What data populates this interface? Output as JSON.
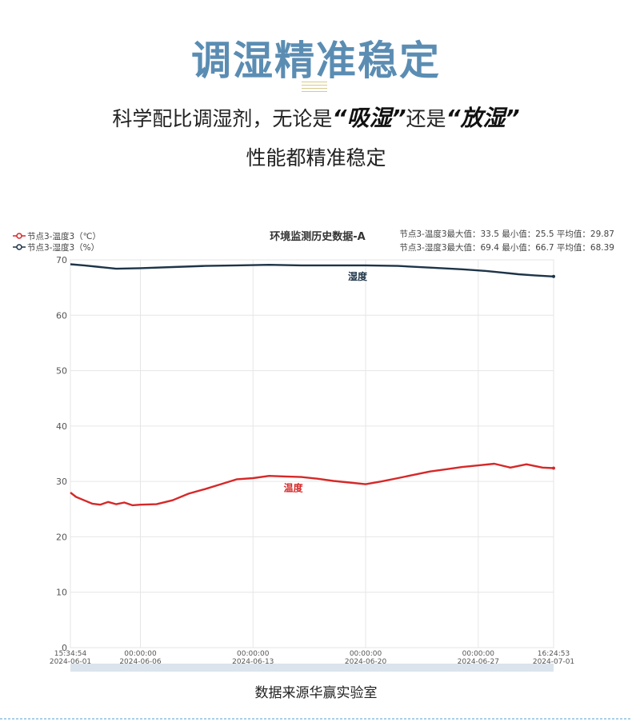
{
  "page": {
    "headline": "调湿精准稳定",
    "subtitle_pre": "科学配比调湿剂，无论是",
    "subtitle_q1": "“吸湿”",
    "subtitle_mid": "还是",
    "subtitle_q2": "“放湿”",
    "subtitle_line2": "性能都精准稳定",
    "source": "数据来源华赢实验室"
  },
  "chart_data": {
    "type": "line",
    "title": "环境监测历史数据-A",
    "ylim": [
      0,
      70
    ],
    "yticks": [
      0,
      10,
      20,
      30,
      40,
      50,
      60,
      70
    ],
    "xlim": [
      "2024-06-01 15:34:54",
      "2024-07-01 16:24:53"
    ],
    "xticks": [
      {
        "time": "15:34:54",
        "date": "2024-06-01"
      },
      {
        "time": "00:00:00",
        "date": "2024-06-06"
      },
      {
        "time": "00:00:00",
        "date": "2024-06-13"
      },
      {
        "time": "00:00:00",
        "date": "2024-06-20"
      },
      {
        "time": "00:00:00",
        "date": "2024-06-27"
      },
      {
        "time": "16:24:53",
        "date": "2024-07-01"
      }
    ],
    "grid": true,
    "legend_position": "top-left",
    "series": [
      {
        "name": "节点3-温度3（℃）",
        "label": "温度",
        "color": "#d62828",
        "stats": "节点3-温度3最大值：33.5 最小值：25.5 平均值：29.87",
        "x": [
          "2024-06-01 15:34",
          "2024-06-02 00:00",
          "2024-06-02 12:00",
          "2024-06-03 00:00",
          "2024-06-03 12:00",
          "2024-06-04 00:00",
          "2024-06-04 12:00",
          "2024-06-05 00:00",
          "2024-06-05 12:00",
          "2024-06-06 00:00",
          "2024-06-07 00:00",
          "2024-06-08 00:00",
          "2024-06-09 00:00",
          "2024-06-10 00:00",
          "2024-06-11 00:00",
          "2024-06-12 00:00",
          "2024-06-13 00:00",
          "2024-06-14 00:00",
          "2024-06-15 00:00",
          "2024-06-16 00:00",
          "2024-06-17 00:00",
          "2024-06-18 00:00",
          "2024-06-19 00:00",
          "2024-06-20 00:00",
          "2024-06-21 00:00",
          "2024-06-22 00:00",
          "2024-06-23 00:00",
          "2024-06-24 00:00",
          "2024-06-25 00:00",
          "2024-06-26 00:00",
          "2024-06-27 00:00",
          "2024-06-28 00:00",
          "2024-06-29 00:00",
          "2024-06-30 00:00",
          "2024-07-01 00:00",
          "2024-07-01 16:24"
        ],
        "y": [
          28.0,
          27.2,
          26.6,
          26.0,
          25.8,
          26.3,
          25.9,
          26.2,
          25.7,
          25.8,
          25.9,
          26.6,
          27.8,
          28.6,
          29.5,
          30.4,
          30.6,
          31.0,
          30.9,
          30.8,
          30.5,
          30.1,
          29.8,
          29.5,
          30.0,
          30.6,
          31.2,
          31.8,
          32.2,
          32.6,
          32.9,
          33.2,
          32.5,
          33.1,
          32.5,
          32.4
        ]
      },
      {
        "name": "节点3-湿度3（%）",
        "label": "湿度",
        "color": "#1d3448",
        "stats": "节点3-湿度3最大值：69.4 最小值：66.7 平均值：68.39",
        "x": [
          "2024-06-01 15:34",
          "2024-06-02 12:00",
          "2024-06-03 12:00",
          "2024-06-04 12:00",
          "2024-06-06 00:00",
          "2024-06-08 00:00",
          "2024-06-10 00:00",
          "2024-06-12 00:00",
          "2024-06-14 00:00",
          "2024-06-16 00:00",
          "2024-06-18 00:00",
          "2024-06-20 00:00",
          "2024-06-22 00:00",
          "2024-06-24 00:00",
          "2024-06-26 00:00",
          "2024-06-27 12:00",
          "2024-06-28 12:00",
          "2024-06-29 12:00",
          "2024-06-30 12:00",
          "2024-07-01 16:24"
        ],
        "y": [
          69.2,
          69.0,
          68.7,
          68.4,
          68.5,
          68.7,
          68.9,
          69.0,
          69.1,
          69.0,
          69.0,
          69.0,
          68.9,
          68.6,
          68.3,
          68.0,
          67.7,
          67.4,
          67.2,
          67.0
        ]
      }
    ]
  }
}
